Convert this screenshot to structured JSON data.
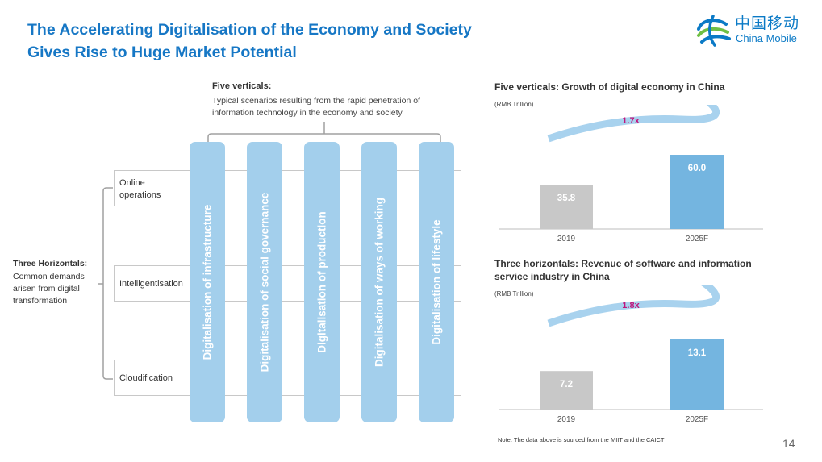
{
  "title": {
    "line1": "The Accelerating Digitalisation of the Economy and Society",
    "line2": "Gives Rise to Huge Market Potential"
  },
  "logo": {
    "cn": "中国移动",
    "en": "China Mobile"
  },
  "five_verticals": {
    "heading": "Five verticals:",
    "description": "Typical scenarios resulting from the rapid penetration of information technology in the economy and society",
    "items": [
      "Digitalisation of infrastructure",
      "Digitalisation of social governance",
      "Digitalisation of production",
      "Digitalisation of ways of working",
      "Digitalisation of lifestyle"
    ]
  },
  "three_horizontals": {
    "heading": "Three Horizontals:",
    "description": "Common demands arisen from digital transformation",
    "items": [
      "Online operations",
      "Intelligentisation",
      "Cloudification"
    ]
  },
  "chart_data": [
    {
      "type": "bar",
      "title": "Five verticals: Growth of digital economy in China",
      "unit": "(RMB Trillion)",
      "categories": [
        "2019",
        "2025F"
      ],
      "values": [
        35.8,
        60.0
      ],
      "value_labels": [
        "35.8",
        "60.0"
      ],
      "bar_colors": [
        "#c8c8c8",
        "#74b5e0"
      ],
      "growth_label": "1.7x",
      "ylim": [
        0,
        60
      ]
    },
    {
      "type": "bar",
      "title": "Three horizontals: Revenue of software and information service industry in China",
      "unit": "(RMB Trillion)",
      "categories": [
        "2019",
        "2025F"
      ],
      "values": [
        7.2,
        13.1
      ],
      "value_labels": [
        "7.2",
        "13.1"
      ],
      "bar_colors": [
        "#c8c8c8",
        "#74b5e0"
      ],
      "growth_label": "1.8x",
      "ylim": [
        0,
        13.1
      ]
    }
  ],
  "note": "Note: The data above is sourced from the MIIT and the CAICT",
  "page_number": "14",
  "colors": {
    "title": "#1677c5",
    "column": "#a3cfec",
    "accent_magenta": "#c0157c",
    "arrow": "#a8d2ee"
  }
}
